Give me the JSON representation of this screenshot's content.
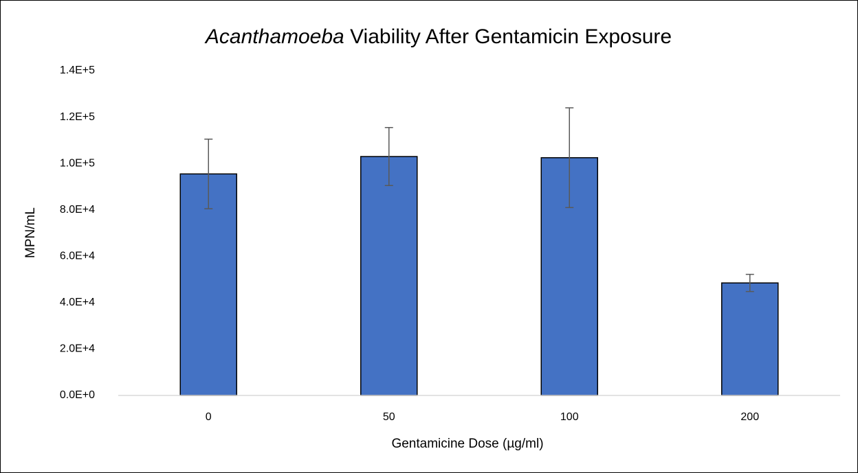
{
  "chart_data": {
    "type": "bar",
    "title": "Acanthamoeba Viability After Gentamicin Exposure",
    "x_label": "Gentamicine Dose (µg/ml)",
    "y_label": "MPN/mL",
    "categories": [
      "0",
      "50",
      "100",
      "200"
    ],
    "values": [
      95500,
      103000,
      102500,
      48500
    ],
    "errors": [
      15000,
      12500,
      21500,
      3700
    ],
    "color": "#4472c4",
    "ylim": [
      0,
      140000
    ],
    "yticks": [
      {
        "value": 0,
        "label": "0.0E+0"
      },
      {
        "value": 20000,
        "label": "2.0E+4"
      },
      {
        "value": 40000,
        "label": "4.0E+4"
      },
      {
        "value": 60000,
        "label": "6.0E+4"
      },
      {
        "value": 80000,
        "label": "8.0E+4"
      },
      {
        "value": 100000,
        "label": "1.0E+5"
      },
      {
        "value": 120000,
        "label": "1.2E+5"
      },
      {
        "value": 140000,
        "label": "1.4E+5"
      }
    ],
    "grid": false
  }
}
